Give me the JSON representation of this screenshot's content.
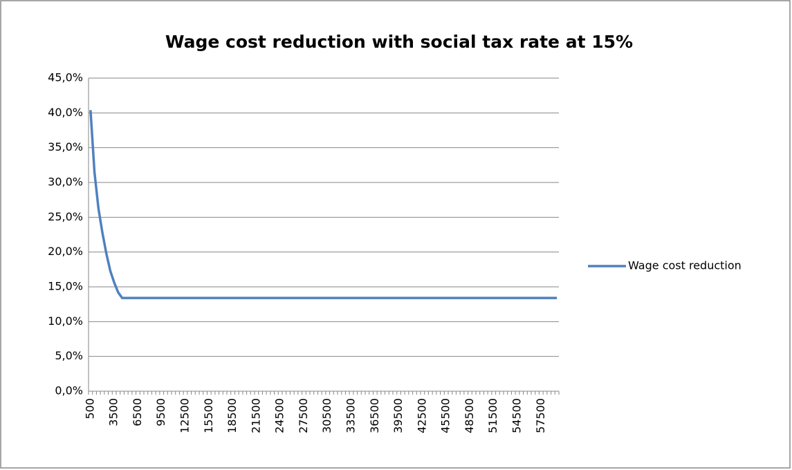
{
  "chart_data": {
    "type": "line",
    "title": "Wage cost reduction with social tax rate at 15%",
    "categories": [
      "500",
      null,
      null,
      null,
      null,
      null,
      "3500",
      null,
      null,
      null,
      null,
      null,
      "6500",
      null,
      null,
      null,
      null,
      null,
      "9500",
      null,
      null,
      null,
      null,
      null,
      "12500",
      null,
      null,
      null,
      null,
      null,
      "15500",
      null,
      null,
      null,
      null,
      null,
      "18500",
      null,
      null,
      null,
      null,
      null,
      "21500",
      null,
      null,
      null,
      null,
      null,
      "24500",
      null,
      null,
      null,
      null,
      null,
      "27500",
      null,
      null,
      null,
      null,
      null,
      "30500",
      null,
      null,
      null,
      null,
      null,
      "33500",
      null,
      null,
      null,
      null,
      null,
      "36500",
      null,
      null,
      null,
      null,
      null,
      "39500",
      null,
      null,
      null,
      null,
      null,
      "42500",
      null,
      null,
      null,
      null,
      null,
      "45500",
      null,
      null,
      null,
      null,
      null,
      "48500",
      null,
      null,
      null,
      null,
      null,
      "51500",
      null,
      null,
      null,
      null,
      null,
      "54500",
      null,
      null,
      null,
      null,
      null,
      "57500",
      null,
      null,
      null,
      null
    ],
    "series": [
      {
        "name": "Wage cost reduction",
        "color": "#4f81bd",
        "values": [
          40.4,
          31.5,
          26.3,
          22.8,
          19.8,
          17.3,
          15.6,
          14.2,
          13.4,
          13.4,
          13.4,
          13.4,
          13.4,
          13.4,
          13.4,
          13.4,
          13.4,
          13.4,
          13.4,
          13.4,
          13.4,
          13.4,
          13.4,
          13.4,
          13.4,
          13.4,
          13.4,
          13.4,
          13.4,
          13.4,
          13.4,
          13.4,
          13.4,
          13.4,
          13.4,
          13.4,
          13.4,
          13.4,
          13.4,
          13.4,
          13.4,
          13.4,
          13.4,
          13.4,
          13.4,
          13.4,
          13.4,
          13.4,
          13.4,
          13.4,
          13.4,
          13.4,
          13.4,
          13.4,
          13.4,
          13.4,
          13.4,
          13.4,
          13.4,
          13.4,
          13.4,
          13.4,
          13.4,
          13.4,
          13.4,
          13.4,
          13.4,
          13.4,
          13.4,
          13.4,
          13.4,
          13.4,
          13.4,
          13.4,
          13.4,
          13.4,
          13.4,
          13.4,
          13.4,
          13.4,
          13.4,
          13.4,
          13.4,
          13.4,
          13.4,
          13.4,
          13.4,
          13.4,
          13.4,
          13.4,
          13.4,
          13.4,
          13.4,
          13.4,
          13.4,
          13.4,
          13.4,
          13.4,
          13.4,
          13.4,
          13.4,
          13.4,
          13.4,
          13.4,
          13.4,
          13.4,
          13.4,
          13.4,
          13.4,
          13.4,
          13.4,
          13.4,
          13.4,
          13.4,
          13.4,
          13.4,
          13.4,
          13.4,
          13.4
        ]
      }
    ],
    "ylim": [
      0,
      45
    ],
    "yticks": [
      {
        "value": 0,
        "label": "0,0%"
      },
      {
        "value": 5,
        "label": "5,0%"
      },
      {
        "value": 10,
        "label": "10,0%"
      },
      {
        "value": 15,
        "label": "15,0%"
      },
      {
        "value": 20,
        "label": "20,0%"
      },
      {
        "value": 25,
        "label": "25,0%"
      },
      {
        "value": 30,
        "label": "30,0%"
      },
      {
        "value": 35,
        "label": "35,0%"
      },
      {
        "value": 40,
        "label": "40,0%"
      },
      {
        "value": 45,
        "label": "45,0%"
      }
    ],
    "grid": true,
    "legend": "right"
  }
}
